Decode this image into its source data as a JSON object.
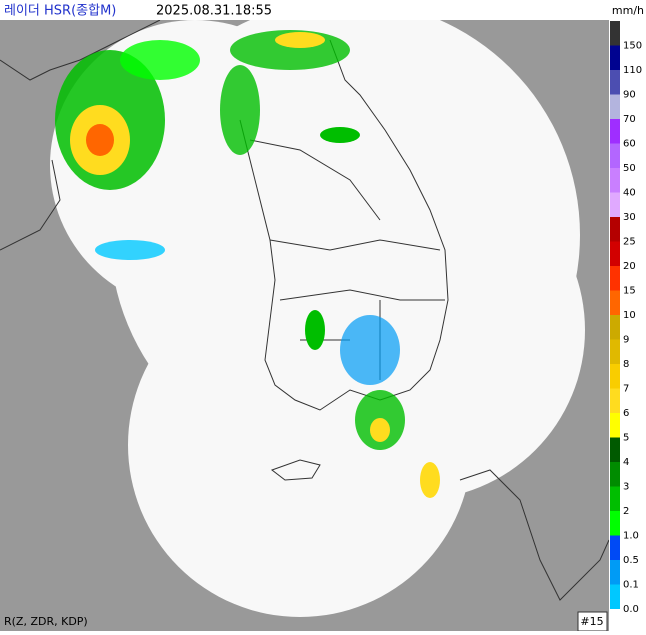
{
  "header": {
    "title": "레이더 HSR(종합M)",
    "time": "2025.08.31.18:55"
  },
  "legend": {
    "unit": "mm/h",
    "items": [
      {
        "label": "150",
        "color": "#333333"
      },
      {
        "label": "110",
        "color": "#000390"
      },
      {
        "label": "90",
        "color": "#4c4eb1"
      },
      {
        "label": "70",
        "color": "#b3b4de"
      },
      {
        "label": "60",
        "color": "#9f2eff"
      },
      {
        "label": "50",
        "color": "#b366ff"
      },
      {
        "label": "40",
        "color": "#c97fff"
      },
      {
        "label": "30",
        "color": "#e0a9ff"
      },
      {
        "label": "25",
        "color": "#b40000"
      },
      {
        "label": "20",
        "color": "#d20000"
      },
      {
        "label": "15",
        "color": "#ff3200"
      },
      {
        "label": "10",
        "color": "#ff6600"
      },
      {
        "label": "9",
        "color": "#ccaa00"
      },
      {
        "label": "8",
        "color": "#e0b900"
      },
      {
        "label": "7",
        "color": "#f9cd00"
      },
      {
        "label": "6",
        "color": "#ffdc1f"
      },
      {
        "label": "5",
        "color": "#ffff00"
      },
      {
        "label": "4",
        "color": "#005a00"
      },
      {
        "label": "3",
        "color": "#008c00"
      },
      {
        "label": "2",
        "color": "#00be00"
      },
      {
        "label": "1.0",
        "color": "#00ff00"
      },
      {
        "label": "0.5",
        "color": "#004af5"
      },
      {
        "label": "0.1",
        "color": "#009bf5"
      },
      {
        "label": "0.0",
        "color": "#00c8ff"
      }
    ]
  },
  "footer": {
    "variables": "R(Z, ZDR, KDP)",
    "frame": "#15"
  }
}
